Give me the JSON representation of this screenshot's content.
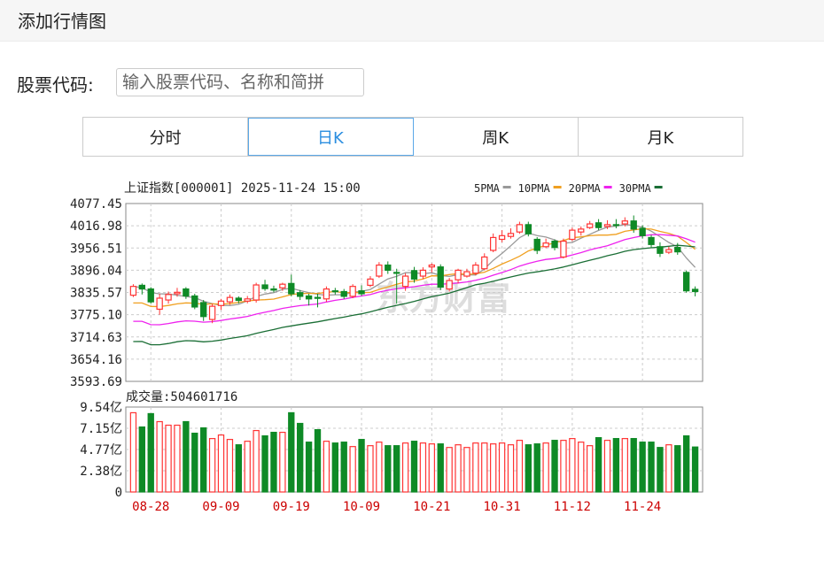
{
  "header": {
    "title": "添加行情图"
  },
  "search": {
    "label": "股票代码:",
    "value": "",
    "placeholder": "输入股票代码、名称和简拼"
  },
  "tabs": [
    {
      "label": "分时",
      "active": false
    },
    {
      "label": "日K",
      "active": true
    },
    {
      "label": "周K",
      "active": false
    },
    {
      "label": "月K",
      "active": false
    }
  ],
  "colors": {
    "up": "#ff3333",
    "down": "#0e8a26",
    "ma5": "#999999",
    "ma10": "#f0a020",
    "ma20": "#ee22ee",
    "ma30": "#1a6e35",
    "accent": "#2b8ee0"
  },
  "chart_data": {
    "type": "candlestick",
    "title": "上证指数[000001] 2025-11-24 15:00",
    "legend": [
      {
        "label": "5PMA",
        "series": "ma5"
      },
      {
        "label": "10PMA",
        "series": "ma10"
      },
      {
        "label": "20PMA",
        "series": "ma20"
      },
      {
        "label": "30PMA",
        "series": "ma30"
      }
    ],
    "price_axis": {
      "ticks": [
        "4077.45",
        "4016.98",
        "3956.51",
        "3896.04",
        "3835.57",
        "3775.10",
        "3714.63",
        "3654.16",
        "3593.69"
      ],
      "min": 3593.69,
      "max": 4077.45
    },
    "volume_label": "成交量:504601716",
    "volume_axis": {
      "ticks": [
        "9.54亿",
        "7.15亿",
        "4.77亿",
        "2.38亿",
        "0"
      ],
      "max": 9.54
    },
    "x_ticks": [
      {
        "label": "08-28",
        "index": 2
      },
      {
        "label": "09-09",
        "index": 10
      },
      {
        "label": "09-19",
        "index": 18
      },
      {
        "label": "10-09",
        "index": 26
      },
      {
        "label": "10-21",
        "index": 34
      },
      {
        "label": "10-31",
        "index": 42
      },
      {
        "label": "11-12",
        "index": 50
      },
      {
        "label": "11-24",
        "index": 58
      }
    ],
    "watermark": "东方财富",
    "candles": [
      [
        3828,
        3852,
        3858,
        3823,
        8.9
      ],
      [
        3855,
        3845,
        3860,
        3830,
        7.3
      ],
      [
        3845,
        3810,
        3850,
        3805,
        8.8
      ],
      [
        3790,
        3820,
        3832,
        3775,
        7.9
      ],
      [
        3815,
        3830,
        3838,
        3805,
        7.5
      ],
      [
        3832,
        3836,
        3848,
        3824,
        7.5
      ],
      [
        3845,
        3826,
        3850,
        3818,
        7.9
      ],
      [
        3826,
        3796,
        3832,
        3790,
        6.6
      ],
      [
        3808,
        3770,
        3815,
        3758,
        7.2
      ],
      [
        3762,
        3798,
        3805,
        3752,
        6.0
      ],
      [
        3800,
        3812,
        3818,
        3788,
        6.4
      ],
      [
        3810,
        3822,
        3830,
        3802,
        5.9
      ],
      [
        3820,
        3814,
        3825,
        3806,
        5.3
      ],
      [
        3812,
        3818,
        3826,
        3806,
        5.7
      ],
      [
        3815,
        3856,
        3862,
        3808,
        6.9
      ],
      [
        3856,
        3846,
        3870,
        3840,
        6.3
      ],
      [
        3845,
        3842,
        3854,
        3836,
        6.7
      ],
      [
        3848,
        3858,
        3862,
        3840,
        6.7
      ],
      [
        3860,
        3832,
        3884,
        3825,
        8.9
      ],
      [
        3835,
        3825,
        3842,
        3815,
        7.7
      ],
      [
        3826,
        3818,
        3832,
        3800,
        5.6
      ],
      [
        3822,
        3820,
        3832,
        3795,
        7.0
      ],
      [
        3818,
        3845,
        3852,
        3810,
        5.7
      ],
      [
        3840,
        3838,
        3848,
        3830,
        5.5
      ],
      [
        3838,
        3825,
        3845,
        3818,
        5.6
      ],
      [
        3825,
        3852,
        3858,
        3820,
        5.1
      ],
      [
        3840,
        3832,
        3855,
        3826,
        5.9
      ],
      [
        3855,
        3872,
        3880,
        3850,
        5.2
      ],
      [
        3880,
        3910,
        3918,
        3875,
        5.6
      ],
      [
        3910,
        3896,
        3920,
        3886,
        5.2
      ],
      [
        3890,
        3888,
        3900,
        3805,
        5.2
      ],
      [
        3852,
        3880,
        3888,
        3840,
        5.5
      ],
      [
        3895,
        3872,
        3905,
        3862,
        5.7
      ],
      [
        3880,
        3896,
        3904,
        3872,
        5.5
      ],
      [
        3905,
        3910,
        3915,
        3890,
        5.4
      ],
      [
        3905,
        3850,
        3912,
        3842,
        5.4
      ],
      [
        3845,
        3868,
        3875,
        3838,
        5.0
      ],
      [
        3870,
        3896,
        3900,
        3860,
        5.3
      ],
      [
        3880,
        3892,
        3900,
        3876,
        5.0
      ],
      [
        3888,
        3910,
        3918,
        3882,
        5.5
      ],
      [
        3900,
        3932,
        3942,
        3896,
        5.5
      ],
      [
        3950,
        3985,
        3996,
        3945,
        5.4
      ],
      [
        3980,
        3990,
        4005,
        3972,
        5.5
      ],
      [
        3988,
        3996,
        4010,
        3982,
        5.3
      ],
      [
        4000,
        4020,
        4028,
        3995,
        5.8
      ],
      [
        4020,
        3995,
        4028,
        3988,
        5.3
      ],
      [
        3980,
        3950,
        3986,
        3940,
        5.4
      ],
      [
        3960,
        3970,
        3982,
        3956,
        5.5
      ],
      [
        3975,
        3958,
        3980,
        3950,
        5.8
      ],
      [
        3932,
        3975,
        3982,
        3928,
        5.8
      ],
      [
        3980,
        4005,
        4012,
        3975,
        6.0
      ],
      [
        4000,
        4008,
        4015,
        3990,
        5.6
      ],
      [
        4012,
        4022,
        4030,
        4008,
        5.2
      ],
      [
        4025,
        4012,
        4035,
        4005,
        6.1
      ],
      [
        4015,
        4020,
        4032,
        4008,
        5.8
      ],
      [
        4020,
        4018,
        4035,
        4010,
        6.0
      ],
      [
        4022,
        4030,
        4040,
        4015,
        6.0
      ],
      [
        4030,
        4008,
        4045,
        3998,
        6.0
      ],
      [
        4010,
        3990,
        4018,
        3982,
        5.6
      ],
      [
        3985,
        3966,
        3992,
        3958,
        5.6
      ],
      [
        3960,
        3942,
        3972,
        3932,
        5.0
      ],
      [
        3945,
        3952,
        3960,
        3940,
        5.3
      ],
      [
        3958,
        3946,
        3970,
        3938,
        5.2
      ],
      [
        3890,
        3840,
        3895,
        3835,
        6.3
      ],
      [
        3844,
        3838,
        3852,
        3825,
        5.05
      ]
    ]
  }
}
